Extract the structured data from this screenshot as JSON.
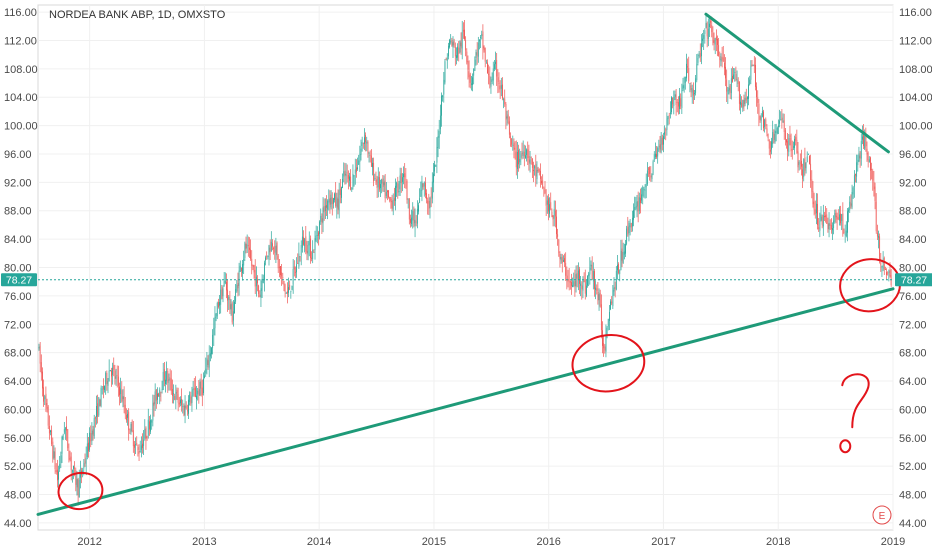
{
  "chart_title": "NORDEA BANK ABP, 1D, OMXSTO",
  "current_price_label": "78.27",
  "event_marker_label": "E",
  "annotation_text": "?",
  "colors": {
    "up": "#26a69a",
    "down": "#ef5350",
    "trendline": "#1e9a78",
    "annotation": "#e3141b",
    "price_line": "#26a69a",
    "axis_text": "#4a4a4a"
  },
  "chart_data": {
    "type": "candlestick",
    "title": "NORDEA BANK ABP, 1D, OMXSTO",
    "x_ticks": [
      "2012",
      "2013",
      "2014",
      "2015",
      "2016",
      "2017",
      "2018",
      "2019"
    ],
    "y_ticks": [
      "44.00",
      "48.00",
      "52.00",
      "56.00",
      "60.00",
      "64.00",
      "68.00",
      "72.00",
      "76.00",
      "80.00",
      "84.00",
      "88.00",
      "92.00",
      "96.00",
      "100.00",
      "104.00",
      "108.00",
      "112.00",
      "116.00"
    ],
    "ylim": [
      43,
      117
    ],
    "xlim": [
      2011.55,
      2019.0
    ],
    "current_price": 78.27,
    "price_path": [
      [
        2011.55,
        69
      ],
      [
        2011.6,
        62
      ],
      [
        2011.66,
        56
      ],
      [
        2011.72,
        50
      ],
      [
        2011.78,
        58
      ],
      [
        2011.84,
        52
      ],
      [
        2011.9,
        49
      ],
      [
        2011.96,
        53
      ],
      [
        2012.02,
        57
      ],
      [
        2012.1,
        62
      ],
      [
        2012.18,
        66
      ],
      [
        2012.26,
        63
      ],
      [
        2012.34,
        58
      ],
      [
        2012.42,
        54
      ],
      [
        2012.5,
        57
      ],
      [
        2012.58,
        62
      ],
      [
        2012.66,
        65
      ],
      [
        2012.74,
        62
      ],
      [
        2012.82,
        60
      ],
      [
        2012.9,
        62
      ],
      [
        2012.98,
        63
      ],
      [
        2013.06,
        69
      ],
      [
        2013.12,
        75
      ],
      [
        2013.18,
        78
      ],
      [
        2013.24,
        73
      ],
      [
        2013.3,
        79
      ],
      [
        2013.36,
        83
      ],
      [
        2013.42,
        80
      ],
      [
        2013.48,
        76
      ],
      [
        2013.54,
        82
      ],
      [
        2013.6,
        84
      ],
      [
        2013.66,
        79
      ],
      [
        2013.72,
        76
      ],
      [
        2013.8,
        80
      ],
      [
        2013.86,
        84
      ],
      [
        2013.94,
        82
      ],
      [
        2014.0,
        86
      ],
      [
        2014.08,
        90
      ],
      [
        2014.16,
        89
      ],
      [
        2014.22,
        93
      ],
      [
        2014.28,
        92
      ],
      [
        2014.34,
        95
      ],
      [
        2014.4,
        99
      ],
      [
        2014.44,
        95
      ],
      [
        2014.5,
        92
      ],
      [
        2014.56,
        91
      ],
      [
        2014.62,
        89
      ],
      [
        2014.68,
        91
      ],
      [
        2014.74,
        94
      ],
      [
        2014.78,
        88
      ],
      [
        2014.84,
        86
      ],
      [
        2014.9,
        92
      ],
      [
        2014.96,
        89
      ],
      [
        2015.02,
        95
      ],
      [
        2015.06,
        103
      ],
      [
        2015.1,
        109
      ],
      [
        2015.14,
        112
      ],
      [
        2015.2,
        110
      ],
      [
        2015.26,
        113
      ],
      [
        2015.32,
        106
      ],
      [
        2015.38,
        111
      ],
      [
        2015.42,
        112
      ],
      [
        2015.48,
        106
      ],
      [
        2015.54,
        108
      ],
      [
        2015.6,
        104
      ],
      [
        2015.66,
        98
      ],
      [
        2015.72,
        95
      ],
      [
        2015.8,
        97
      ],
      [
        2015.86,
        94
      ],
      [
        2015.94,
        92
      ],
      [
        2016.0,
        88
      ],
      [
        2016.06,
        87
      ],
      [
        2016.1,
        81
      ],
      [
        2016.14,
        80
      ],
      [
        2016.2,
        77
      ],
      [
        2016.26,
        79
      ],
      [
        2016.32,
        77
      ],
      [
        2016.36,
        80
      ],
      [
        2016.4,
        78
      ],
      [
        2016.44,
        75
      ],
      [
        2016.48,
        68
      ],
      [
        2016.52,
        74
      ],
      [
        2016.58,
        78
      ],
      [
        2016.64,
        82
      ],
      [
        2016.7,
        86
      ],
      [
        2016.76,
        88
      ],
      [
        2016.82,
        91
      ],
      [
        2016.9,
        94
      ],
      [
        2016.96,
        97
      ],
      [
        2017.02,
        100
      ],
      [
        2017.08,
        104
      ],
      [
        2017.14,
        103
      ],
      [
        2017.2,
        108
      ],
      [
        2017.26,
        104
      ],
      [
        2017.3,
        109
      ],
      [
        2017.36,
        113
      ],
      [
        2017.4,
        114
      ],
      [
        2017.46,
        111
      ],
      [
        2017.52,
        109
      ],
      [
        2017.56,
        104
      ],
      [
        2017.62,
        107
      ],
      [
        2017.68,
        103
      ],
      [
        2017.72,
        104
      ],
      [
        2017.78,
        109
      ],
      [
        2017.82,
        103
      ],
      [
        2017.88,
        100
      ],
      [
        2017.92,
        97
      ],
      [
        2017.98,
        99
      ],
      [
        2018.04,
        101
      ],
      [
        2018.08,
        97
      ],
      [
        2018.14,
        98
      ],
      [
        2018.2,
        93
      ],
      [
        2018.26,
        96
      ],
      [
        2018.3,
        90
      ],
      [
        2018.36,
        86
      ],
      [
        2018.4,
        88
      ],
      [
        2018.46,
        85
      ],
      [
        2018.52,
        88
      ],
      [
        2018.58,
        85
      ],
      [
        2018.62,
        88
      ],
      [
        2018.68,
        94
      ],
      [
        2018.72,
        97
      ],
      [
        2018.76,
        98
      ],
      [
        2018.8,
        95
      ],
      [
        2018.84,
        89
      ],
      [
        2018.86,
        85
      ],
      [
        2018.9,
        80
      ],
      [
        2018.94,
        80
      ],
      [
        2018.97,
        79
      ],
      [
        2019.0,
        78
      ]
    ],
    "trendlines": [
      {
        "from": [
          2011.55,
          45.2
        ],
        "to": [
          2019.0,
          77.0
        ]
      },
      {
        "from": [
          2017.37,
          115.7
        ],
        "to": [
          2018.96,
          96.3
        ]
      }
    ],
    "annotation_circles": [
      {
        "x": 2011.92,
        "y": 48.5
      },
      {
        "x": 2016.52,
        "y": 66.5
      },
      {
        "x": 2018.8,
        "y": 77.5
      }
    ],
    "question_mark": {
      "x": 2018.68,
      "y": 62
    }
  }
}
